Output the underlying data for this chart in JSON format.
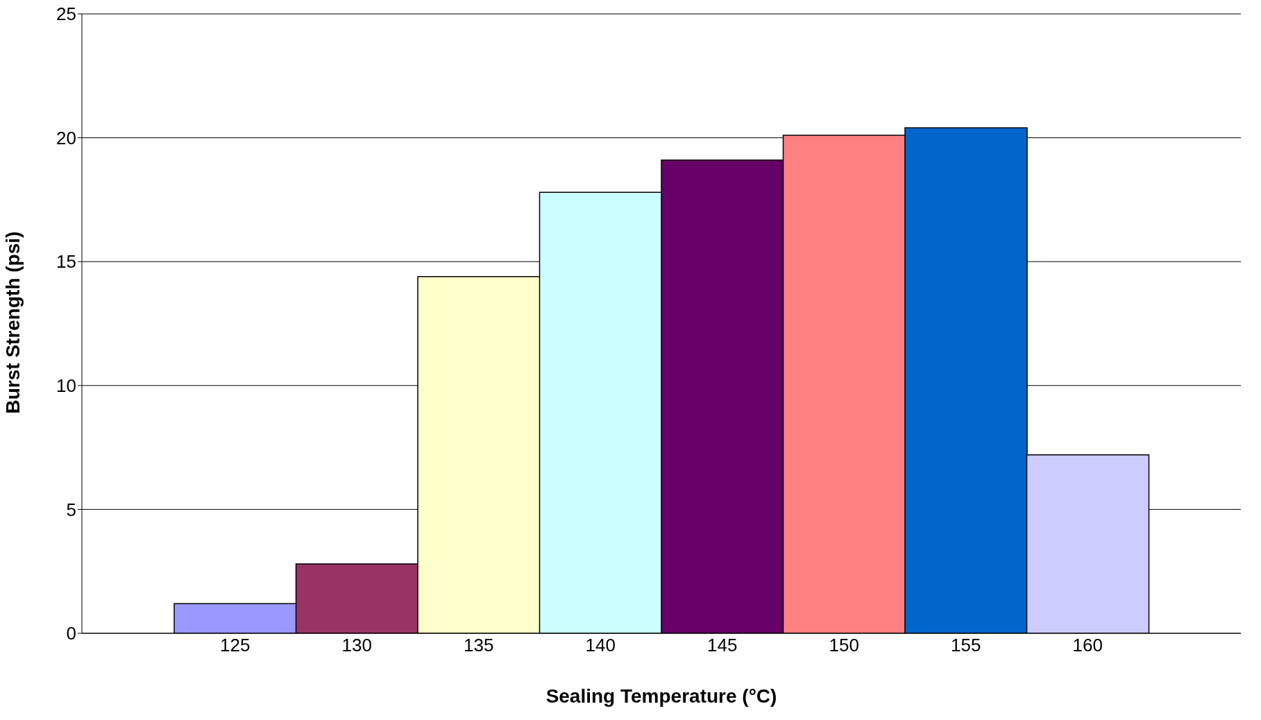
{
  "chart_data": {
    "type": "bar",
    "xlabel": "Sealing Temperature (°C)",
    "ylabel": "Burst Strength (psi)",
    "categories": [
      "125",
      "130",
      "135",
      "140",
      "145",
      "150",
      "155",
      "160"
    ],
    "values": [
      1.2,
      2.8,
      14.4,
      17.8,
      19.1,
      20.1,
      20.4,
      7.2
    ],
    "colors": [
      "#9999ff",
      "#993366",
      "#ffffcc",
      "#ccffff",
      "#660066",
      "#ff8080",
      "#0066cc",
      "#ccccff"
    ],
    "ylim": [
      0,
      25
    ],
    "yticks": [
      0,
      5,
      10,
      15,
      20,
      25
    ],
    "grid": "y",
    "legend": false
  }
}
